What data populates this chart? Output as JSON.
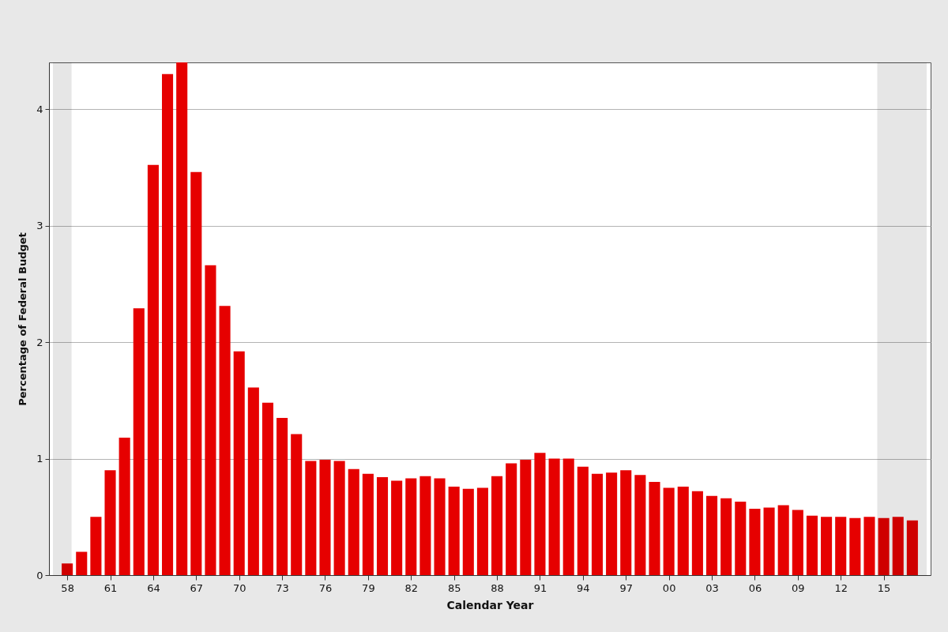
{
  "chart_data": {
    "type": "bar",
    "xlabel": "Calendar Year",
    "ylabel": "Percentage of Federal Budget",
    "x": [
      1958,
      1959,
      1960,
      1961,
      1962,
      1963,
      1964,
      1965,
      1966,
      1967,
      1968,
      1969,
      1970,
      1971,
      1972,
      1973,
      1974,
      1975,
      1976,
      1977,
      1978,
      1979,
      1980,
      1981,
      1982,
      1983,
      1984,
      1985,
      1986,
      1987,
      1988,
      1989,
      1990,
      1991,
      1992,
      1993,
      1994,
      1995,
      1996,
      1997,
      1998,
      1999,
      2000,
      2001,
      2002,
      2003,
      2004,
      2005,
      2006,
      2007,
      2008,
      2009,
      2010,
      2011,
      2012,
      2013,
      2014,
      2015,
      2016,
      2017
    ],
    "values": [
      0.1,
      0.2,
      0.5,
      0.9,
      1.18,
      2.29,
      3.52,
      4.3,
      4.4,
      3.46,
      2.66,
      2.31,
      1.92,
      1.61,
      1.48,
      1.35,
      1.21,
      0.98,
      0.99,
      0.98,
      0.91,
      0.87,
      0.84,
      0.81,
      0.83,
      0.85,
      0.83,
      0.76,
      0.74,
      0.75,
      0.85,
      0.96,
      0.99,
      1.05,
      1.0,
      1.0,
      0.93,
      0.87,
      0.88,
      0.9,
      0.86,
      0.8,
      0.75,
      0.76,
      0.72,
      0.68,
      0.66,
      0.63,
      0.57,
      0.58,
      0.6,
      0.56,
      0.51,
      0.5,
      0.5,
      0.49,
      0.5,
      0.49,
      0.5,
      0.47
    ],
    "color": "#e60000",
    "xlim": [
      1957,
      2018
    ],
    "xticks": [
      {
        "value": 1958,
        "label": "58"
      },
      {
        "value": 1961,
        "label": "61"
      },
      {
        "value": 1964,
        "label": "64"
      },
      {
        "value": 1967,
        "label": "67"
      },
      {
        "value": 1970,
        "label": "70"
      },
      {
        "value": 1973,
        "label": "73"
      },
      {
        "value": 1976,
        "label": "76"
      },
      {
        "value": 1979,
        "label": "79"
      },
      {
        "value": 1982,
        "label": "82"
      },
      {
        "value": 1985,
        "label": "85"
      },
      {
        "value": 1988,
        "label": "88"
      },
      {
        "value": 1991,
        "label": "91"
      },
      {
        "value": 1994,
        "label": "94"
      },
      {
        "value": 1997,
        "label": "97"
      },
      {
        "value": 2000,
        "label": "00"
      },
      {
        "value": 2003,
        "label": "03"
      },
      {
        "value": 2006,
        "label": "06"
      },
      {
        "value": 2009,
        "label": "09"
      },
      {
        "value": 2012,
        "label": "12"
      },
      {
        "value": 2015,
        "label": "15"
      }
    ],
    "ylim": [
      0,
      4.4
    ],
    "yticks": [
      0,
      1,
      2,
      3,
      4
    ],
    "grid": "y",
    "bands": [
      {
        "axis": "x",
        "from": 1957,
        "to": 1958.3,
        "color": "#e6e6e6"
      },
      {
        "axis": "x",
        "from": 2014.55,
        "to": 2018,
        "color": "#e6e6e6"
      }
    ]
  }
}
